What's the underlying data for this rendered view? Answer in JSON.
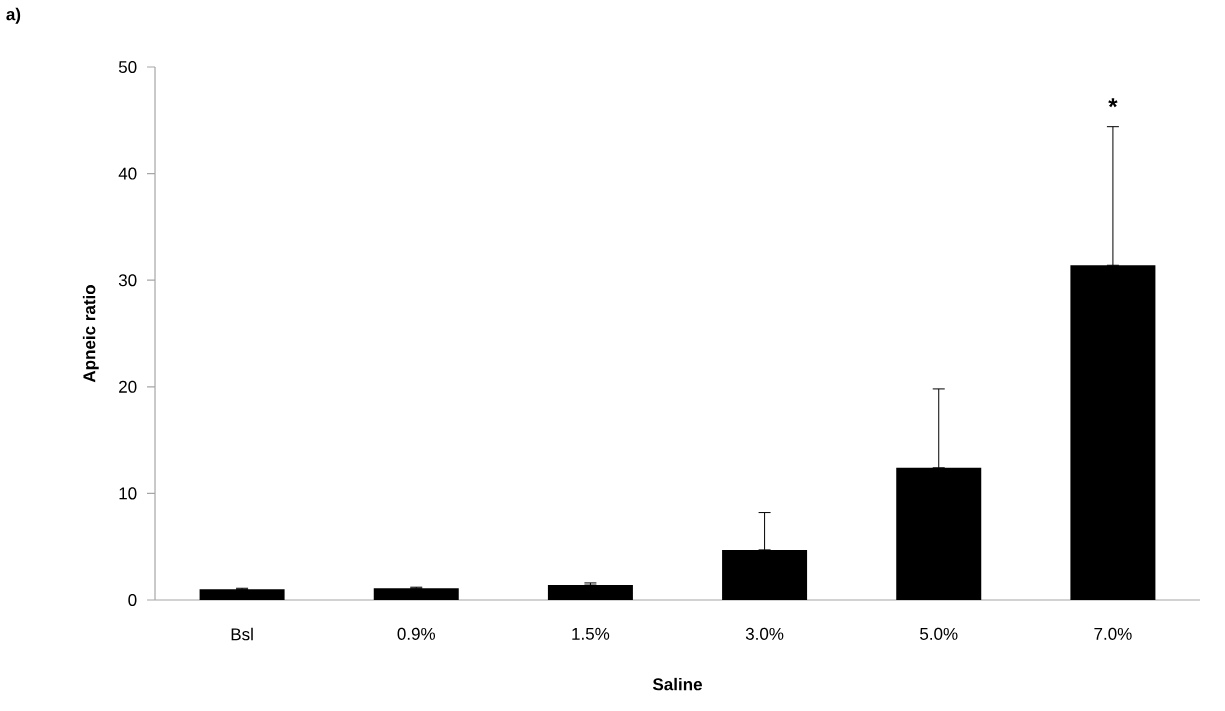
{
  "chart_data": {
    "type": "bar",
    "categories": [
      "Bsl",
      "0.9%",
      "1.5%",
      "3.0%",
      "5.0%",
      "7.0%"
    ],
    "values": [
      1.0,
      1.1,
      1.4,
      4.7,
      12.4,
      31.4
    ],
    "errors": [
      [
        1.0,
        1.1
      ],
      [
        1.1,
        1.2
      ],
      [
        1.4,
        1.6
      ],
      [
        4.7,
        8.2
      ],
      [
        12.4,
        19.8
      ],
      [
        31.4,
        44.4
      ]
    ],
    "color": "#000000",
    "xlabel": "Saline",
    "ylabel": "Apneic ratio",
    "ylim": [
      0,
      50
    ],
    "yticks": [
      0,
      10,
      20,
      30,
      40,
      50
    ],
    "annotations": [
      "a)",
      "*"
    ]
  }
}
